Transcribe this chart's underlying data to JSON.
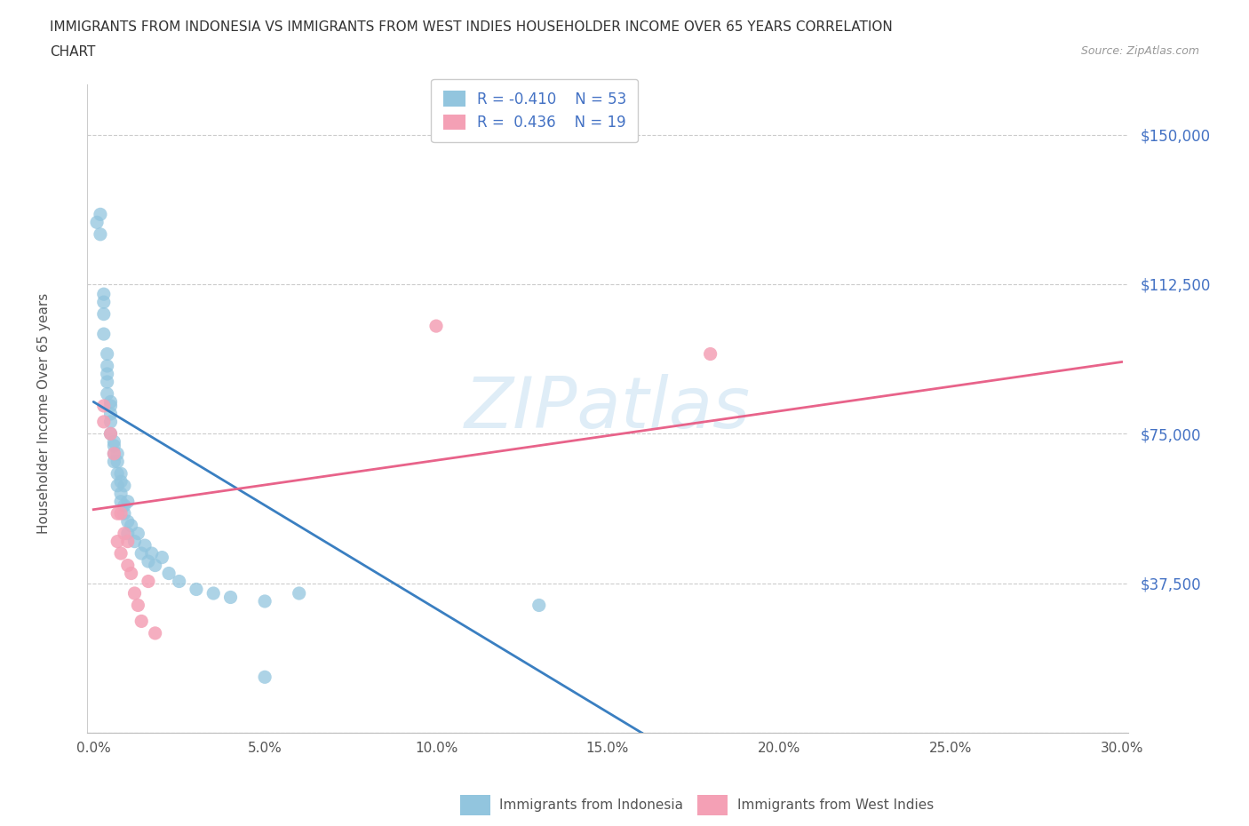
{
  "title_line1": "IMMIGRANTS FROM INDONESIA VS IMMIGRANTS FROM WEST INDIES HOUSEHOLDER INCOME OVER 65 YEARS CORRELATION",
  "title_line2": "CHART",
  "source": "Source: ZipAtlas.com",
  "ylabel": "Householder Income Over 65 years",
  "xlim": [
    -0.002,
    0.302
  ],
  "ylim": [
    0,
    162500
  ],
  "yticks": [
    0,
    37500,
    75000,
    112500,
    150000
  ],
  "ytick_labels": [
    "",
    "$37,500",
    "$75,000",
    "$112,500",
    "$150,000"
  ],
  "xticks": [
    0.0,
    0.05,
    0.1,
    0.15,
    0.2,
    0.25,
    0.3
  ],
  "xtick_labels": [
    "0.0%",
    "5.0%",
    "10.0%",
    "15.0%",
    "20.0%",
    "25.0%",
    "30.0%"
  ],
  "indonesia_color": "#92c5de",
  "west_indies_color": "#f4a0b5",
  "indonesia_R": -0.41,
  "indonesia_N": 53,
  "west_indies_R": 0.436,
  "west_indies_N": 19,
  "indonesia_line_color": "#3a7fc1",
  "west_indies_line_color": "#e8638a",
  "watermark": "ZIPatlas",
  "background_color": "#ffffff",
  "grid_color": "#cccccc",
  "legend_label_indonesia": "Immigrants from Indonesia",
  "legend_label_west_indies": "Immigrants from West Indies",
  "indonesia_x": [
    0.001,
    0.002,
    0.002,
    0.003,
    0.003,
    0.003,
    0.003,
    0.004,
    0.004,
    0.004,
    0.004,
    0.004,
    0.005,
    0.005,
    0.005,
    0.005,
    0.005,
    0.006,
    0.006,
    0.006,
    0.006,
    0.007,
    0.007,
    0.007,
    0.007,
    0.008,
    0.008,
    0.008,
    0.008,
    0.009,
    0.009,
    0.009,
    0.01,
    0.01,
    0.01,
    0.011,
    0.012,
    0.013,
    0.014,
    0.015,
    0.016,
    0.017,
    0.018,
    0.02,
    0.022,
    0.025,
    0.03,
    0.035,
    0.04,
    0.05,
    0.06,
    0.13,
    0.05
  ],
  "indonesia_y": [
    128000,
    130000,
    125000,
    110000,
    105000,
    100000,
    108000,
    95000,
    90000,
    92000,
    85000,
    88000,
    82000,
    78000,
    80000,
    75000,
    83000,
    72000,
    70000,
    68000,
    73000,
    65000,
    68000,
    62000,
    70000,
    60000,
    65000,
    58000,
    63000,
    57000,
    62000,
    55000,
    53000,
    58000,
    50000,
    52000,
    48000,
    50000,
    45000,
    47000,
    43000,
    45000,
    42000,
    44000,
    40000,
    38000,
    36000,
    35000,
    34000,
    33000,
    35000,
    32000,
    14000
  ],
  "west_indies_x": [
    0.003,
    0.003,
    0.005,
    0.006,
    0.007,
    0.007,
    0.008,
    0.008,
    0.009,
    0.01,
    0.01,
    0.011,
    0.012,
    0.013,
    0.014,
    0.016,
    0.018,
    0.1,
    0.18
  ],
  "west_indies_y": [
    82000,
    78000,
    75000,
    70000,
    55000,
    48000,
    55000,
    45000,
    50000,
    42000,
    48000,
    40000,
    35000,
    32000,
    28000,
    38000,
    25000,
    102000,
    95000
  ],
  "indo_trend_x0": 0.0,
  "indo_trend_x1": 0.16,
  "indo_trend_y0": 83000,
  "indo_trend_y1": 0,
  "wi_trend_x0": 0.0,
  "wi_trend_x1": 0.3,
  "wi_trend_y0": 56000,
  "wi_trend_y1": 93000
}
